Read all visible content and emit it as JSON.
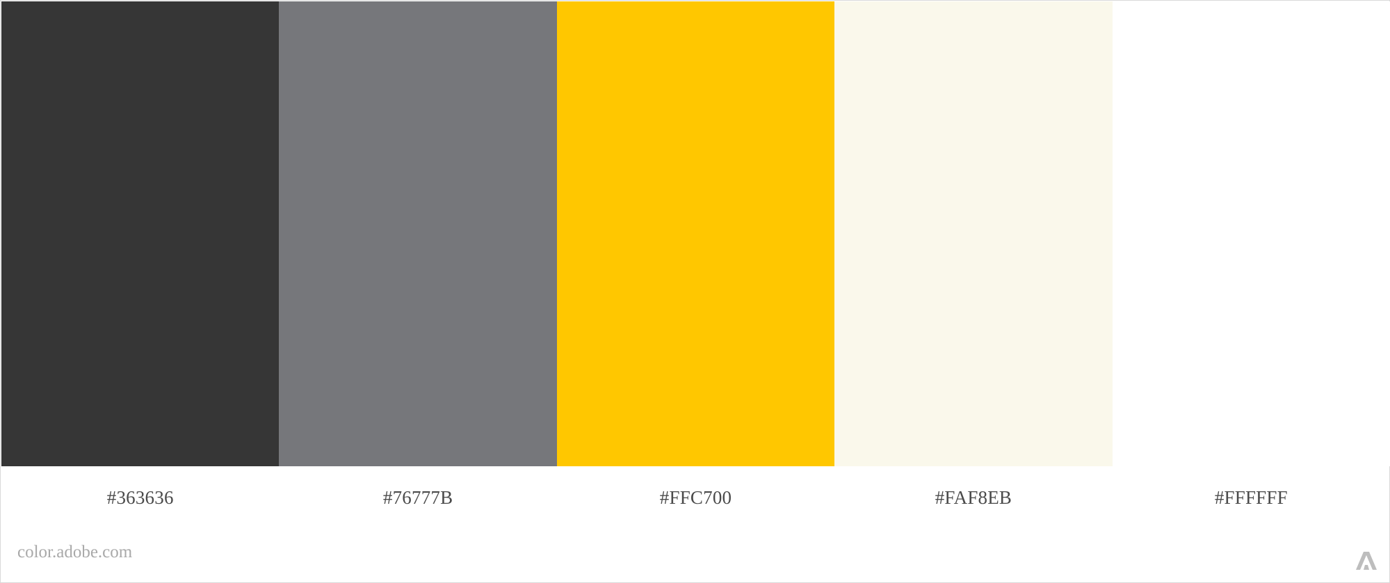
{
  "palette": {
    "swatches": [
      {
        "color": "#363636",
        "label": "#363636"
      },
      {
        "color": "#76777B",
        "label": "#76777B"
      },
      {
        "color": "#FFC700",
        "label": "#FFC700"
      },
      {
        "color": "#FAF8EB",
        "label": "#FAF8EB"
      },
      {
        "color": "#FFFFFF",
        "label": "#FFFFFF"
      }
    ]
  },
  "footer": {
    "site": "color.adobe.com",
    "logo_icon": "adobe-logo-icon"
  }
}
